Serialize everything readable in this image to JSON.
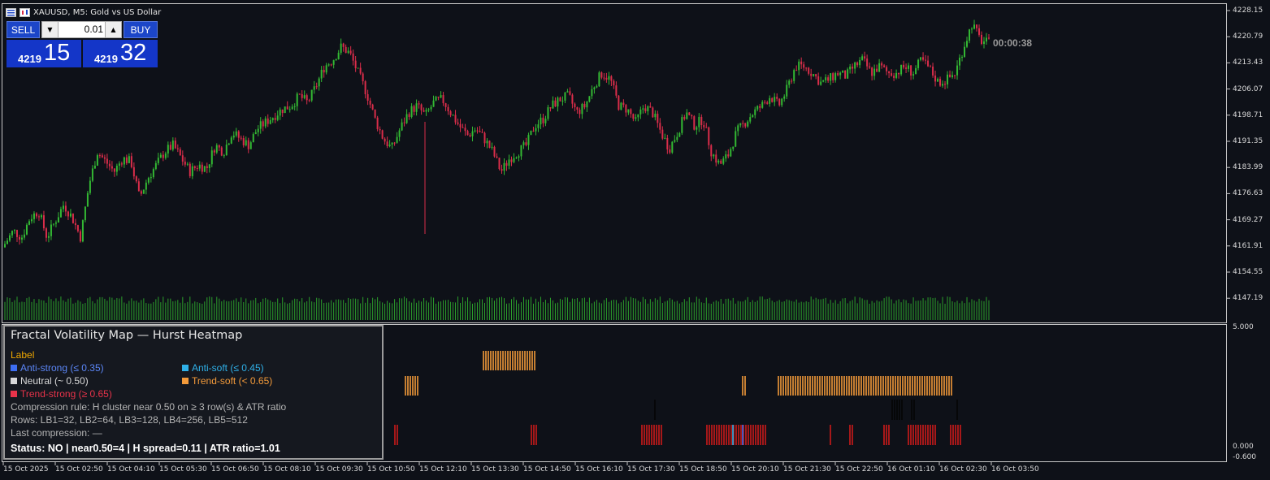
{
  "window": {
    "symbol_title": "XAUUSD, M5:  Gold vs US Dollar"
  },
  "trade_panel": {
    "sell_label": "SELL",
    "buy_label": "BUY",
    "lot_value": "0.01",
    "bid_small": "4219",
    "bid_big": "15",
    "ask_small": "4219",
    "ask_big": "32"
  },
  "timer": "00:00:38",
  "price_axis": [
    "4228.15",
    "4220.79",
    "4213.43",
    "4206.07",
    "4198.71",
    "4191.35",
    "4183.99",
    "4176.63",
    "4169.27",
    "4161.91",
    "4154.55",
    "4147.19"
  ],
  "sub_axis": {
    "top": "5.000",
    "zero": "0.000",
    "bottom": "-0.600"
  },
  "time_axis": [
    "15 Oct 2025",
    "15 Oct 02:50",
    "15 Oct 04:10",
    "15 Oct 05:30",
    "15 Oct 06:50",
    "15 Oct 08:10",
    "15 Oct 09:30",
    "15 Oct 10:50",
    "15 Oct 12:10",
    "15 Oct 13:30",
    "15 Oct 14:50",
    "15 Oct 16:10",
    "15 Oct 17:30",
    "15 Oct 18:50",
    "15 Oct 20:10",
    "15 Oct 21:30",
    "15 Oct 22:50",
    "16 Oct 01:10",
    "16 Oct 02:30",
    "16 Oct 03:50"
  ],
  "legend": {
    "title": "Fractal Volatility Map — Hurst Heatmap",
    "label_heading": "Label",
    "anti_strong": "Anti-strong (≤ 0.35)",
    "anti_soft": "Anti-soft (≤ 0.45)",
    "neutral": "Neutral (~ 0.50)",
    "trend_soft": "Trend-soft (< 0.65)",
    "trend_strong": "Trend-strong (≥ 0.65)",
    "compression_rule": "Compression rule: H cluster near 0.50 on ≥ 3 row(s) & ATR ratio",
    "rows": "Rows: LB1=32, LB2=64, LB3=128, LB4=256, LB5=512",
    "last_compression": "Last compression: —",
    "status": "Status: NO   | near0.50=4  | H spread=0.11  | ATR ratio=1.01"
  },
  "colors": {
    "bull": "#33b833",
    "bear": "#d92d4a",
    "volume": "#2ca02c",
    "anti_strong": "#3d6df0",
    "anti_soft": "#2fb0e8",
    "neutral": "#d8d8d8",
    "trend_soft": "#f39a3a",
    "trend_strong": "#e8334a",
    "label_heading": "#f0a800"
  },
  "chart_data": [
    {
      "type": "candlestick",
      "title": "XAUUSD, M5:  Gold vs US Dollar",
      "ylim": [
        4142,
        4229
      ],
      "close_path": [
        4158,
        4162,
        4160,
        4166,
        4168,
        4160,
        4165,
        4170,
        4166,
        4160,
        4176,
        4186,
        4183,
        4180,
        4184,
        4183,
        4172,
        4178,
        4182,
        4186,
        4188,
        4184,
        4180,
        4182,
        4181,
        4188,
        4186,
        4192,
        4190,
        4188,
        4193,
        4195,
        4197,
        4199,
        4200,
        4203,
        4201,
        4206,
        4212,
        4214,
        4218,
        4216,
        4210,
        4204,
        4196,
        4190,
        4187,
        4193,
        4198,
        4200,
        4197,
        4201,
        4202,
        4198,
        4194,
        4191,
        4193,
        4190,
        4186,
        4180,
        4184,
        4186,
        4188,
        4194,
        4196,
        4200,
        4202,
        4203,
        4198,
        4200,
        4206,
        4210,
        4208,
        4200,
        4199,
        4195,
        4200,
        4198,
        4192,
        4187,
        4192,
        4198,
        4194,
        4196,
        4186,
        4182,
        4185,
        4192,
        4195,
        4198,
        4200,
        4203,
        4200,
        4205,
        4212,
        4212,
        4210,
        4207,
        4208,
        4210,
        4209,
        4212,
        4214,
        4210,
        4212,
        4210,
        4210,
        4212,
        4210,
        4214,
        4211,
        4207,
        4208,
        4210,
        4218,
        4225,
        4220,
        4219
      ]
    },
    {
      "type": "heatmap",
      "title": "Fractal Volatility Map — Hurst Heatmap",
      "rows": [
        "LB1=32",
        "LB2=64",
        "LB3=128",
        "LB4=256",
        "LB5=512"
      ],
      "segments": [
        {
          "row": "trend_soft_row1",
          "label": "Trend-soft",
          "from": 595,
          "to": 660
        },
        {
          "row": "trend_soft_row2",
          "label": "Trend-soft",
          "from": 499,
          "to": 515
        },
        {
          "row": "trend_soft_row2",
          "label": "Trend-soft",
          "from": 914,
          "to": 918
        },
        {
          "row": "trend_soft_row2",
          "label": "Trend-soft",
          "from": 958,
          "to": 1172
        },
        {
          "row": "neutral",
          "label": "Neutral",
          "from": 806,
          "to": 806
        },
        {
          "row": "neutral",
          "label": "Neutral",
          "from": 1098,
          "to": 1112
        },
        {
          "row": "neutral",
          "label": "Neutral",
          "from": 1122,
          "to": 1127
        },
        {
          "row": "neutral",
          "label": "Neutral",
          "from": 1178,
          "to": 1178
        },
        {
          "row": "trend_strong",
          "label": "Trend-strong",
          "from": 486,
          "to": 490
        },
        {
          "row": "trend_strong",
          "label": "Trend-strong",
          "from": 654,
          "to": 662
        },
        {
          "row": "trend_strong",
          "label": "Trend-strong",
          "from": 790,
          "to": 816
        },
        {
          "row": "trend_strong",
          "label": "Trend-strong",
          "from": 870,
          "to": 944
        },
        {
          "row": "trend_strong",
          "label": "Trend-strong",
          "from": 1022,
          "to": 1024
        },
        {
          "row": "trend_strong",
          "label": "Trend-strong",
          "from": 1046,
          "to": 1050
        },
        {
          "row": "trend_strong",
          "label": "Trend-strong",
          "from": 1088,
          "to": 1095
        },
        {
          "row": "trend_strong",
          "label": "Trend-strong",
          "from": 1118,
          "to": 1152
        },
        {
          "row": "trend_strong",
          "label": "Trend-strong",
          "from": 1170,
          "to": 1184
        }
      ]
    }
  ]
}
